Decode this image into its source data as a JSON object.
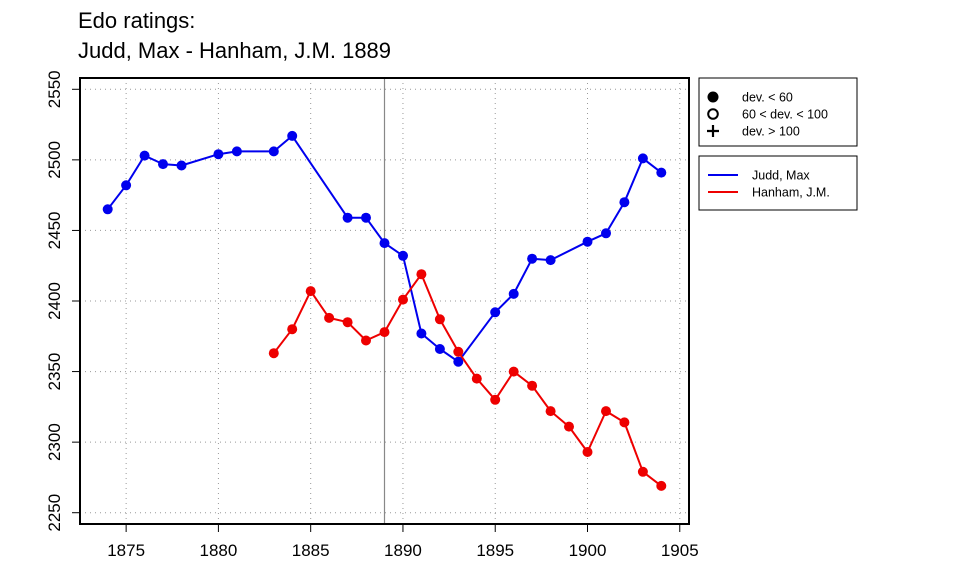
{
  "title": {
    "line1": "Edo ratings:",
    "line2": "Judd, Max - Hanham, J.M. 1889"
  },
  "marker_legend": [
    {
      "symbol": "filled-circle",
      "label": "dev. < 60"
    },
    {
      "symbol": "open-circle",
      "label": "60 < dev. < 100"
    },
    {
      "symbol": "plus",
      "label": "dev. > 100"
    }
  ],
  "chart_data": {
    "type": "line",
    "title": "Edo ratings:\nJudd, Max - Hanham, J.M. 1889",
    "xlabel": "",
    "ylabel": "",
    "xlim": [
      1872.5,
      1905.5
    ],
    "ylim": [
      2242,
      2558
    ],
    "x_ticks": [
      1875,
      1880,
      1885,
      1890,
      1895,
      1900,
      1905
    ],
    "y_ticks": [
      2250,
      2300,
      2350,
      2400,
      2450,
      2500,
      2550
    ],
    "grid": true,
    "reference_line_x": 1889,
    "legend_position": "right",
    "series": [
      {
        "name": "Judd, Max",
        "color": "#0000ee",
        "x": [
          1874,
          1875,
          1876,
          1877,
          1878,
          1880,
          1881,
          1883,
          1884,
          1887,
          1888,
          1889,
          1890,
          1891,
          1892,
          1893,
          1895,
          1896,
          1897,
          1898,
          1900,
          1901,
          1902,
          1903,
          1904
        ],
        "y": [
          2465,
          2482,
          2503,
          2497,
          2496,
          2504,
          2506,
          2506,
          2517,
          2459,
          2459,
          2441,
          2432,
          2377,
          2366,
          2357,
          2392,
          2405,
          2430,
          2429,
          2442,
          2448,
          2470,
          2501,
          2491
        ]
      },
      {
        "name": "Hanham, J.M.",
        "color": "#ee0000",
        "x": [
          1883,
          1884,
          1885,
          1886,
          1887,
          1888,
          1889,
          1890,
          1891,
          1892,
          1893,
          1894,
          1895,
          1896,
          1897,
          1898,
          1899,
          1900,
          1901,
          1902,
          1903,
          1904
        ],
        "y": [
          2363,
          2380,
          2407,
          2388,
          2385,
          2372,
          2378,
          2401,
          2419,
          2387,
          2364,
          2345,
          2330,
          2350,
          2340,
          2322,
          2311,
          2293,
          2322,
          2314,
          2279,
          2269
        ]
      }
    ]
  }
}
